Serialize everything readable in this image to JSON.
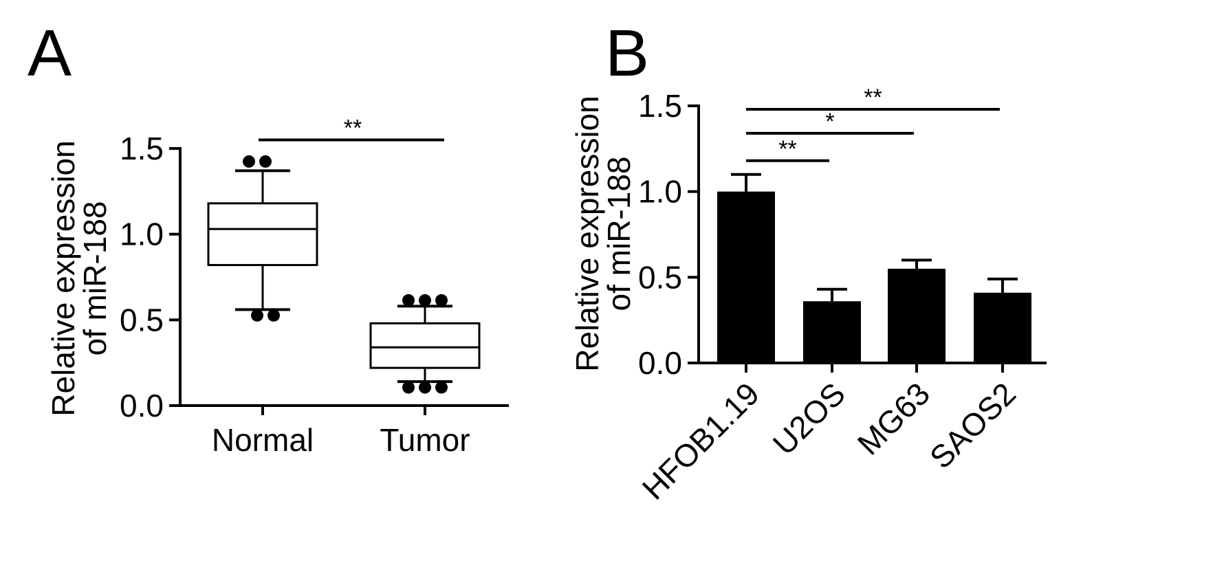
{
  "colors": {
    "ink": "#000000",
    "background": "#ffffff",
    "bar_fill": "#000000",
    "box_fill": "#ffffff"
  },
  "panel_a": {
    "letter": "A"
  },
  "panel_b": {
    "letter": "B"
  },
  "chart_data": [
    {
      "panel": "A",
      "type": "box",
      "ylabel_lines": [
        "Relative expression",
        "of miR-188"
      ],
      "ylim": [
        0,
        1.5
      ],
      "yticks": [
        "0.0",
        "0.5",
        "1.0",
        "1.5"
      ],
      "categories": [
        "Normal",
        "Tumor"
      ],
      "boxes": [
        {
          "name": "Normal",
          "whisker_low": 0.56,
          "q1": 0.82,
          "median": 1.03,
          "q3": 1.18,
          "whisker_high": 1.37,
          "outliers": [
            1.4,
            1.4,
            0.55,
            0.55
          ]
        },
        {
          "name": "Tumor",
          "whisker_low": 0.14,
          "q1": 0.22,
          "median": 0.34,
          "q3": 0.48,
          "whisker_high": 0.58,
          "outliers": [
            0.59,
            0.59,
            0.59,
            0.13,
            0.13,
            0.13
          ]
        }
      ],
      "significance": [
        {
          "from": "Normal",
          "to": "Tumor",
          "label": "**",
          "y": 1.55
        }
      ],
      "grid": false
    },
    {
      "panel": "B",
      "type": "bar",
      "ylabel_lines": [
        "Relative expression",
        "of miR-188"
      ],
      "ylim": [
        0,
        1.5
      ],
      "yticks": [
        "0.0",
        "0.5",
        "1.0",
        "1.5"
      ],
      "categories": [
        "HFOB1.19",
        "U2OS",
        "MG63",
        "SAOS2"
      ],
      "values": [
        1.0,
        0.36,
        0.55,
        0.41
      ],
      "errors": [
        0.1,
        0.07,
        0.05,
        0.08
      ],
      "significance": [
        {
          "from": "HFOB1.19",
          "to": "U2OS",
          "label": "**",
          "y": 1.18
        },
        {
          "from": "HFOB1.19",
          "to": "MG63",
          "label": "*",
          "y": 1.34
        },
        {
          "from": "HFOB1.19",
          "to": "SAOS2",
          "label": "**",
          "y": 1.48
        }
      ],
      "grid": false
    }
  ]
}
